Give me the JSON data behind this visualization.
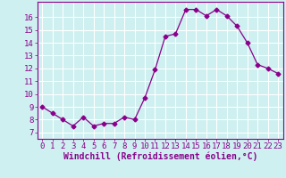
{
  "x": [
    0,
    1,
    2,
    3,
    4,
    5,
    6,
    7,
    8,
    9,
    10,
    11,
    12,
    13,
    14,
    15,
    16,
    17,
    18,
    19,
    20,
    21,
    22,
    23
  ],
  "y": [
    9.0,
    8.5,
    8.0,
    7.5,
    8.2,
    7.5,
    7.7,
    7.7,
    8.2,
    8.0,
    9.7,
    11.9,
    14.5,
    14.7,
    16.6,
    16.6,
    16.1,
    16.6,
    16.1,
    15.3,
    14.0,
    12.3,
    12.0,
    11.6
  ],
  "line_color": "#8B008B",
  "marker": "D",
  "marker_size": 2.5,
  "bg_color": "#cef0f0",
  "grid_color": "#ffffff",
  "xlabel": "Windchill (Refroidissement éolien,°C)",
  "xlabel_color": "#8B008B",
  "tick_color": "#8B008B",
  "spine_color": "#8B008B",
  "ylim": [
    6.5,
    17.2
  ],
  "xlim": [
    -0.5,
    23.5
  ],
  "yticks": [
    7,
    8,
    9,
    10,
    11,
    12,
    13,
    14,
    15,
    16
  ],
  "xticks": [
    0,
    1,
    2,
    3,
    4,
    5,
    6,
    7,
    8,
    9,
    10,
    11,
    12,
    13,
    14,
    15,
    16,
    17,
    18,
    19,
    20,
    21,
    22,
    23
  ],
  "font_size": 6.5,
  "xlabel_font_size": 7
}
